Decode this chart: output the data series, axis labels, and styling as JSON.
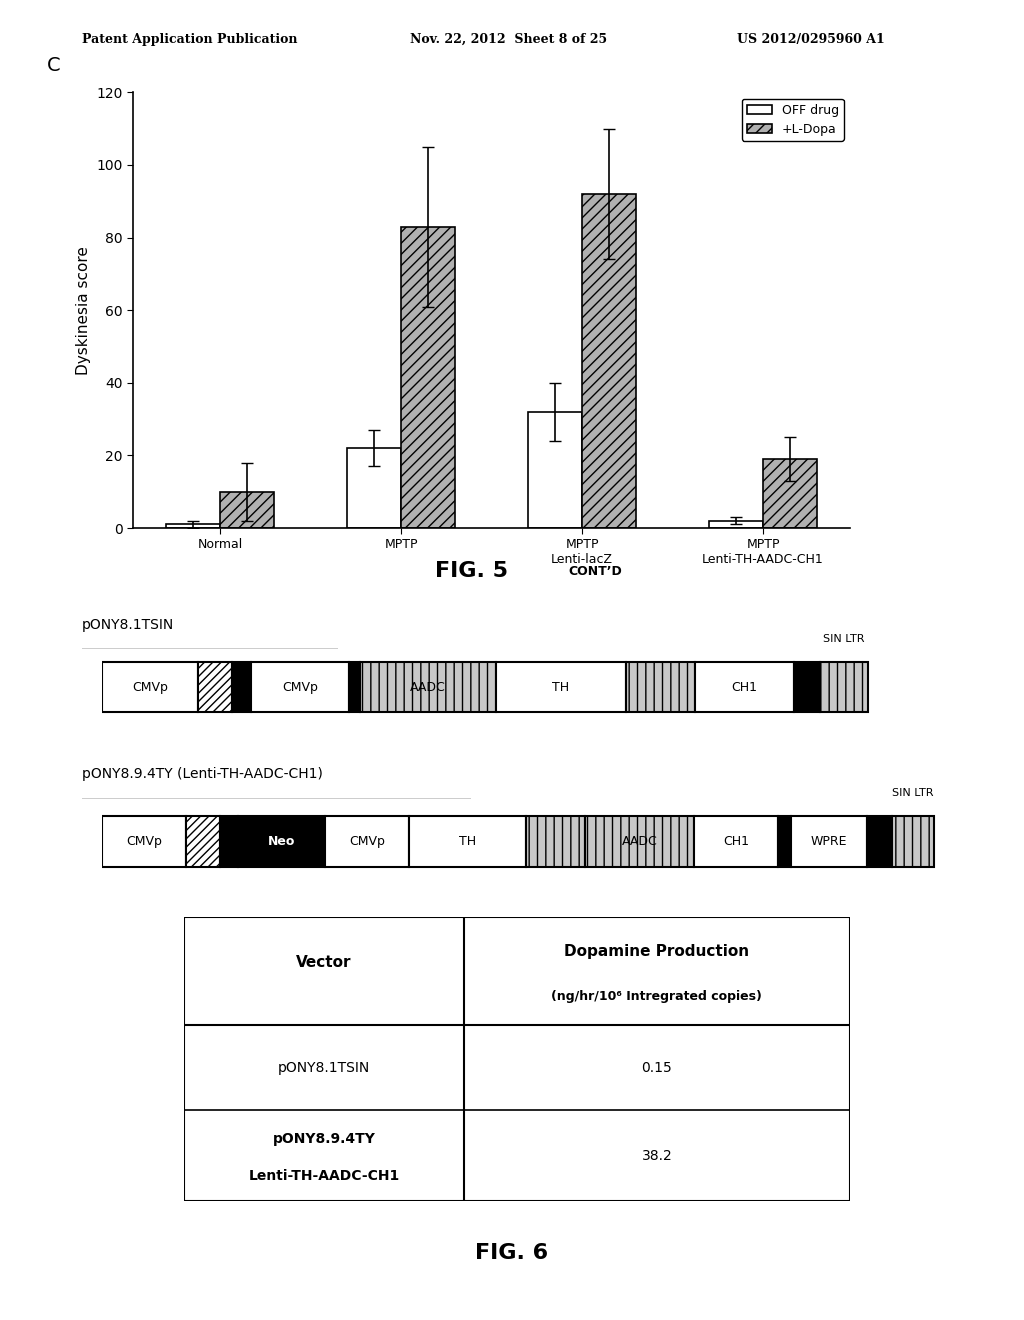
{
  "header_left": "Patent Application Publication",
  "header_mid": "Nov. 22, 2012  Sheet 8 of 25",
  "header_right": "US 2012/0295960 A1",
  "panel_c_label": "C",
  "bar_groups": [
    "Normal",
    "MPTP",
    "MPTP\nLenti-lacZ",
    "MPTP\nLenti-TH-AADC-CH1"
  ],
  "off_drug_values": [
    1,
    22,
    32,
    2
  ],
  "off_drug_errors": [
    1,
    5,
    8,
    1
  ],
  "ldopa_values": [
    10,
    83,
    92,
    19
  ],
  "ldopa_errors": [
    8,
    22,
    18,
    6
  ],
  "ylabel": "Dyskinesia score",
  "ylim": [
    0,
    120
  ],
  "yticks": [
    0,
    20,
    40,
    60,
    80,
    100,
    120
  ],
  "legend_off": "OFF drug",
  "legend_ldopa": "+L-Dopa",
  "fig5_caption": "FIG. 5",
  "fig5_sup": "CONT’D",
  "fig6_caption": "FIG. 6",
  "vector1_name": "pONY8.1TSIN",
  "vector2_name": "pONY8.9.4TY (Lenti-TH-AADC-CH1)",
  "table_col1_header": "Vector",
  "table_col2_header_line1": "Dopamine Production",
  "table_col2_header_line2": "(ng/hr/10⁶ Intregrated copies)",
  "table_row1_col1": "pONY8.1TSIN",
  "table_row1_col2": "0.15",
  "table_row2_col1_line1": "pONY8.9.4TY",
  "table_row2_col1_line2": "Lenti-TH-AADC-CH1",
  "table_row2_col2": "38.2",
  "ldopa_hatch": "///",
  "off_drug_color": "white",
  "ldopa_color": "#b0b0b0",
  "bar_edgecolor": "black",
  "bg_color": "white"
}
